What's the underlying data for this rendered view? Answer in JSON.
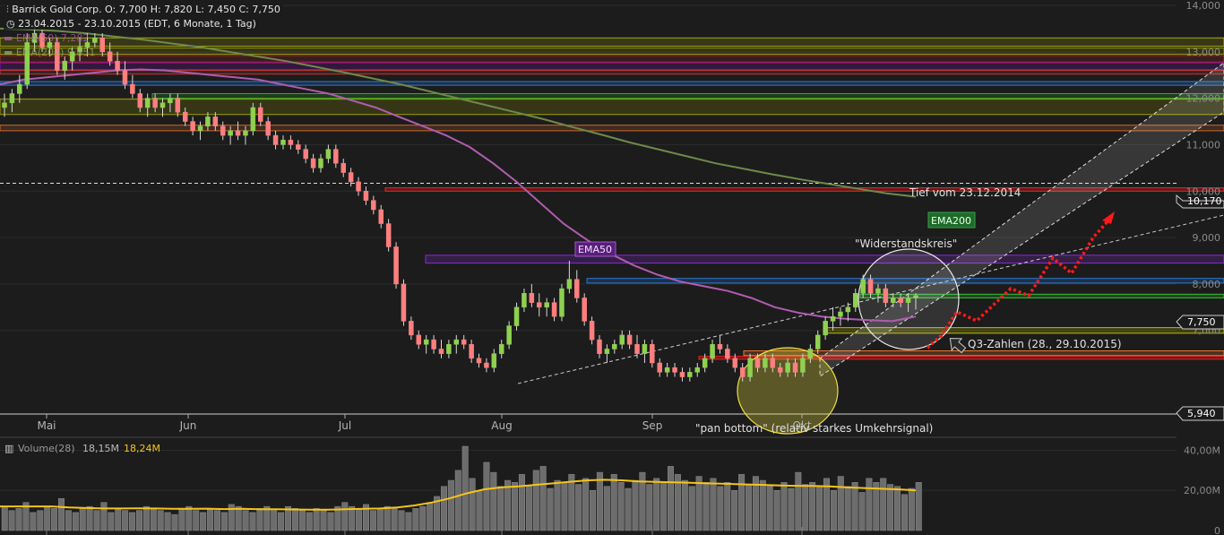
{
  "header": {
    "title_line": "Barrick Gold Corp.   O: 7,700   H: 7,820   L: 7,450   C: 7,750",
    "period_line": "23.04.2015 - 23.10.2015 (EDT, 6 Monate, 1 Tag)",
    "ema50_line": "EMA(50)  7,282",
    "ema200_line": "EMA(200)  9,851"
  },
  "colors": {
    "background": "#1c1c1c",
    "up_candle": "#8fd14f",
    "down_candle": "#ff7f7f",
    "ema50": "#b05cb0",
    "ema200": "#6e8a4a",
    "volume_ma": "#f5c518",
    "volume_bar": "#6a6a6a",
    "annotation_red": "#ff1a1a"
  },
  "chart_data": {
    "type": "candlestick",
    "title": "Barrick Gold Corp.",
    "y_ticks": [
      "14,000",
      "13,000",
      "12,000",
      "11,000",
      "10,000",
      "9,000",
      "8,000",
      "7,000"
    ],
    "ylim": [
      5.2,
      14.0
    ],
    "x_month_labels": [
      "Mai",
      "Jun",
      "Jul",
      "Aug",
      "Sep",
      "Okt"
    ],
    "price_labels": {
      "tief_value": "10,170",
      "last_value": "7,750",
      "low_value": "5,940"
    },
    "ohlc": [
      [
        11.8,
        12.1,
        11.6,
        11.9
      ],
      [
        11.9,
        12.2,
        11.7,
        12.1
      ],
      [
        12.1,
        12.5,
        11.9,
        12.3
      ],
      [
        12.3,
        13.4,
        12.2,
        13.2
      ],
      [
        13.2,
        13.6,
        13.0,
        13.4
      ],
      [
        13.4,
        13.5,
        13.0,
        13.1
      ],
      [
        13.1,
        13.3,
        12.9,
        13.2
      ],
      [
        13.2,
        13.3,
        12.5,
        12.6
      ],
      [
        12.6,
        12.9,
        12.4,
        12.8
      ],
      [
        12.8,
        13.1,
        12.6,
        13.0
      ],
      [
        13.0,
        13.3,
        12.8,
        13.1
      ],
      [
        13.1,
        13.4,
        12.9,
        13.2
      ],
      [
        13.2,
        13.4,
        13.1,
        13.3
      ],
      [
        13.3,
        13.4,
        12.9,
        13.0
      ],
      [
        13.0,
        13.2,
        12.7,
        12.8
      ],
      [
        12.8,
        13.0,
        12.5,
        12.6
      ],
      [
        12.6,
        12.8,
        12.2,
        12.3
      ],
      [
        12.3,
        12.5,
        12.0,
        12.1
      ],
      [
        12.1,
        12.2,
        11.7,
        11.8
      ],
      [
        11.8,
        12.1,
        11.6,
        12.0
      ],
      [
        12.0,
        12.1,
        11.7,
        11.8
      ],
      [
        11.8,
        12.0,
        11.6,
        11.9
      ],
      [
        11.9,
        12.1,
        11.7,
        12.0
      ],
      [
        12.0,
        12.1,
        11.6,
        11.7
      ],
      [
        11.7,
        11.8,
        11.4,
        11.5
      ],
      [
        11.5,
        11.6,
        11.2,
        11.3
      ],
      [
        11.3,
        11.5,
        11.1,
        11.4
      ],
      [
        11.4,
        11.7,
        11.3,
        11.6
      ],
      [
        11.6,
        11.7,
        11.3,
        11.4
      ],
      [
        11.4,
        11.5,
        11.1,
        11.2
      ],
      [
        11.2,
        11.4,
        11.0,
        11.3
      ],
      [
        11.3,
        11.5,
        11.1,
        11.2
      ],
      [
        11.2,
        11.4,
        11.0,
        11.3
      ],
      [
        11.3,
        11.9,
        11.2,
        11.8
      ],
      [
        11.8,
        11.9,
        11.4,
        11.5
      ],
      [
        11.5,
        11.6,
        11.1,
        11.2
      ],
      [
        11.2,
        11.3,
        10.9,
        11.0
      ],
      [
        11.0,
        11.2,
        10.9,
        11.1
      ],
      [
        11.1,
        11.2,
        10.9,
        11.0
      ],
      [
        11.0,
        11.1,
        10.8,
        10.9
      ],
      [
        10.9,
        11.0,
        10.6,
        10.7
      ],
      [
        10.7,
        10.8,
        10.4,
        10.5
      ],
      [
        10.5,
        10.8,
        10.4,
        10.7
      ],
      [
        10.7,
        11.0,
        10.6,
        10.9
      ],
      [
        10.9,
        11.0,
        10.5,
        10.6
      ],
      [
        10.6,
        10.7,
        10.3,
        10.4
      ],
      [
        10.4,
        10.5,
        10.1,
        10.2
      ],
      [
        10.2,
        10.3,
        9.9,
        10.0
      ],
      [
        10.0,
        10.1,
        9.7,
        9.8
      ],
      [
        9.8,
        9.9,
        9.5,
        9.6
      ],
      [
        9.6,
        9.7,
        9.2,
        9.3
      ],
      [
        9.3,
        9.4,
        8.7,
        8.8
      ],
      [
        8.8,
        8.9,
        7.9,
        8.0
      ],
      [
        8.0,
        8.1,
        7.1,
        7.2
      ],
      [
        7.2,
        7.3,
        6.8,
        6.9
      ],
      [
        6.9,
        7.0,
        6.6,
        6.7
      ],
      [
        6.7,
        6.9,
        6.5,
        6.8
      ],
      [
        6.8,
        6.9,
        6.5,
        6.6
      ],
      [
        6.6,
        6.8,
        6.4,
        6.5
      ],
      [
        6.5,
        6.8,
        6.4,
        6.7
      ],
      [
        6.7,
        6.9,
        6.5,
        6.8
      ],
      [
        6.8,
        6.9,
        6.6,
        6.7
      ],
      [
        6.7,
        6.8,
        6.3,
        6.4
      ],
      [
        6.4,
        6.5,
        6.2,
        6.3
      ],
      [
        6.3,
        6.4,
        6.1,
        6.2
      ],
      [
        6.2,
        6.6,
        6.1,
        6.5
      ],
      [
        6.5,
        6.8,
        6.4,
        6.7
      ],
      [
        6.7,
        7.2,
        6.6,
        7.1
      ],
      [
        7.1,
        7.6,
        7.0,
        7.5
      ],
      [
        7.5,
        7.9,
        7.4,
        7.8
      ],
      [
        7.8,
        8.0,
        7.5,
        7.6
      ],
      [
        7.6,
        7.8,
        7.3,
        7.5
      ],
      [
        7.5,
        7.7,
        7.3,
        7.6
      ],
      [
        7.6,
        7.7,
        7.2,
        7.3
      ],
      [
        7.3,
        8.0,
        7.2,
        7.9
      ],
      [
        7.9,
        8.5,
        7.8,
        8.1
      ],
      [
        8.1,
        8.3,
        7.6,
        7.7
      ],
      [
        7.7,
        7.8,
        7.1,
        7.2
      ],
      [
        7.2,
        7.3,
        6.7,
        6.8
      ],
      [
        6.8,
        6.9,
        6.4,
        6.5
      ],
      [
        6.5,
        6.7,
        6.3,
        6.6
      ],
      [
        6.6,
        6.8,
        6.5,
        6.7
      ],
      [
        6.7,
        7.0,
        6.6,
        6.9
      ],
      [
        6.9,
        7.0,
        6.6,
        6.7
      ],
      [
        6.7,
        6.9,
        6.4,
        6.5
      ],
      [
        6.5,
        6.8,
        6.3,
        6.7
      ],
      [
        6.7,
        6.8,
        6.2,
        6.3
      ],
      [
        6.3,
        6.4,
        6.0,
        6.1
      ],
      [
        6.1,
        6.3,
        6.0,
        6.2
      ],
      [
        6.2,
        6.3,
        6.0,
        6.1
      ],
      [
        6.1,
        6.2,
        5.9,
        6.0
      ],
      [
        6.0,
        6.2,
        5.9,
        6.1
      ],
      [
        6.1,
        6.3,
        6.0,
        6.2
      ],
      [
        6.2,
        6.5,
        6.1,
        6.4
      ],
      [
        6.4,
        6.8,
        6.3,
        6.7
      ],
      [
        6.7,
        6.9,
        6.5,
        6.6
      ],
      [
        6.6,
        6.7,
        6.3,
        6.4
      ],
      [
        6.4,
        6.5,
        6.1,
        6.2
      ],
      [
        6.2,
        6.3,
        5.9,
        6.0
      ],
      [
        6.0,
        6.5,
        5.9,
        6.4
      ],
      [
        6.4,
        6.5,
        6.1,
        6.2
      ],
      [
        6.2,
        6.5,
        6.1,
        6.4
      ],
      [
        6.4,
        6.5,
        6.1,
        6.2
      ],
      [
        6.2,
        6.3,
        6.0,
        6.1
      ],
      [
        6.1,
        6.4,
        6.0,
        6.3
      ],
      [
        6.3,
        6.4,
        6.0,
        6.1
      ],
      [
        6.1,
        6.5,
        6.0,
        6.4
      ],
      [
        6.4,
        6.7,
        6.3,
        6.6
      ],
      [
        6.6,
        7.0,
        6.5,
        6.9
      ],
      [
        6.9,
        7.3,
        6.8,
        7.2
      ],
      [
        7.2,
        7.5,
        7.0,
        7.3
      ],
      [
        7.3,
        7.5,
        7.1,
        7.4
      ],
      [
        7.4,
        7.6,
        7.2,
        7.5
      ],
      [
        7.5,
        7.9,
        7.4,
        7.8
      ],
      [
        7.8,
        8.2,
        7.7,
        8.1
      ],
      [
        8.1,
        8.2,
        7.7,
        7.8
      ],
      [
        7.8,
        8.0,
        7.6,
        7.9
      ],
      [
        7.9,
        8.0,
        7.5,
        7.6
      ],
      [
        7.6,
        7.8,
        7.5,
        7.7
      ],
      [
        7.7,
        7.8,
        7.5,
        7.6
      ],
      [
        7.6,
        7.8,
        7.4,
        7.7
      ],
      [
        7.7,
        7.8,
        7.45,
        7.75
      ]
    ],
    "ema50": [
      12.3,
      12.4,
      12.45,
      12.5,
      12.55,
      12.6,
      12.62,
      12.6,
      12.55,
      12.5,
      12.45,
      12.4,
      12.3,
      12.2,
      12.1,
      11.95,
      11.8,
      11.6,
      11.4,
      11.2,
      10.95,
      10.6,
      10.2,
      9.75,
      9.3,
      8.95,
      8.65,
      8.4,
      8.2,
      8.05,
      7.95,
      7.85,
      7.7,
      7.5,
      7.38,
      7.3,
      7.25,
      7.22,
      7.2,
      7.3
    ],
    "ema200": [
      13.5,
      13.48,
      13.45,
      13.4,
      13.33,
      13.26,
      13.18,
      13.1,
      13.0,
      12.9,
      12.8,
      12.68,
      12.56,
      12.43,
      12.3,
      12.15,
      12.0,
      11.85,
      11.7,
      11.55,
      11.38,
      11.22,
      11.05,
      10.9,
      10.75,
      10.6,
      10.48,
      10.36,
      10.25,
      10.15,
      10.05,
      9.95,
      9.88
    ],
    "volume_ticks": [
      "40,00M",
      "20,00M",
      "0"
    ],
    "volume_max": 42,
    "volume": [
      12,
      10,
      11,
      14,
      9,
      10,
      12,
      11,
      16,
      10,
      9,
      11,
      12,
      10,
      14,
      9,
      11,
      10,
      9,
      10,
      12,
      11,
      10,
      9,
      8,
      11,
      12,
      10,
      9,
      11,
      10,
      9,
      13,
      12,
      10,
      9,
      11,
      12,
      10,
      9,
      12,
      11,
      10,
      9,
      11,
      10,
      9,
      12,
      14,
      12,
      11,
      13,
      10,
      11,
      12,
      11,
      10,
      9,
      11,
      12,
      14,
      17,
      22,
      25,
      30,
      42,
      26,
      20,
      34,
      29,
      22,
      25,
      24,
      28,
      22,
      30,
      32,
      21,
      25,
      24,
      28,
      23,
      26,
      20,
      29,
      22,
      28,
      24,
      21,
      25,
      29,
      23,
      26,
      24,
      32,
      28,
      25,
      22,
      27,
      24,
      26,
      22,
      24,
      20,
      28,
      23,
      27,
      25,
      22,
      20,
      24,
      21,
      29,
      23,
      24,
      22,
      26,
      20,
      27,
      22,
      24,
      19,
      26,
      24,
      26,
      23,
      22,
      18,
      21,
      24
    ],
    "volume_ma": [
      12,
      12,
      12,
      12,
      11.5,
      11.2,
      11,
      11,
      11.1,
      11,
      10.8,
      10.8,
      10.9,
      10.7,
      10.8,
      10.6,
      10.6,
      10.5,
      10.4,
      10.4,
      10.6,
      10.8,
      11,
      11.5,
      12.5,
      14,
      16,
      18.5,
      20.5,
      21.5,
      22,
      22.8,
      23.5,
      24.3,
      25,
      25.3,
      25,
      24.5,
      24.2,
      24,
      23.8,
      23.5,
      23.3,
      23,
      22.8,
      22.5,
      22.3,
      22.2,
      22,
      21.5,
      21.2,
      20.8,
      20.5,
      20
    ],
    "labels": {
      "volume_label": "Volume(28)",
      "volume_val1": "18,15M",
      "volume_val2": "18,24M",
      "ema50_tag": "EMA50",
      "ema200_tag": "EMA200",
      "tief_text": "Tief vom 23.12.2014",
      "widerstand_text": "\"Widerstandskreis\"",
      "q3_text": "Q3-Zahlen (28., 29.10.2015)",
      "pan_text": "\"pan bottom\" (relativ starkes Umkehrsignal)"
    }
  }
}
